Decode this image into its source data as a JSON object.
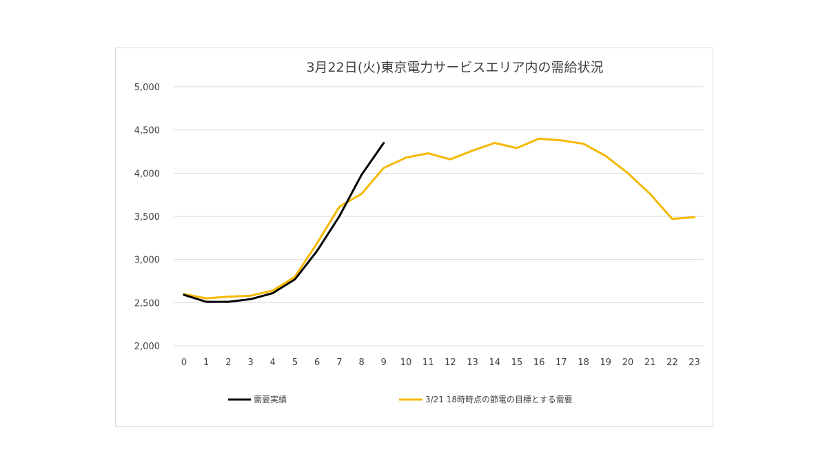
{
  "chart_data": {
    "type": "line",
    "title": "3月22日(火)東京電力サービスエリア内の需給状況",
    "xlabel": "",
    "ylabel": "",
    "x": [
      0,
      1,
      2,
      3,
      4,
      5,
      6,
      7,
      8,
      9,
      10,
      11,
      12,
      13,
      14,
      15,
      16,
      17,
      18,
      19,
      20,
      21,
      22,
      23
    ],
    "x_tick_labels": [
      "0",
      "1",
      "2",
      "3",
      "4",
      "5",
      "6",
      "7",
      "8",
      "9",
      "10",
      "11",
      "12",
      "13",
      "14",
      "15",
      "16",
      "17",
      "18",
      "19",
      "20",
      "21",
      "22",
      "23"
    ],
    "ylim": [
      2000,
      5000
    ],
    "y_ticks": [
      2000,
      2500,
      3000,
      3500,
      4000,
      4500,
      5000
    ],
    "y_tick_labels": [
      "2,000",
      "2,500",
      "3,000",
      "3,500",
      "4,000",
      "4,500",
      "5,000"
    ],
    "grid": true,
    "legend_position": "bottom",
    "series": [
      {
        "name": "需要実績",
        "color": "#000000",
        "values": [
          2590,
          2510,
          2510,
          2540,
          2610,
          2770,
          3100,
          3500,
          3980,
          4350,
          null,
          null,
          null,
          null,
          null,
          null,
          null,
          null,
          null,
          null,
          null,
          null,
          null,
          null
        ]
      },
      {
        "name": "3/21 18時時点の節電の目標とする需要",
        "color": "#f5b800",
        "values": [
          2600,
          2550,
          2570,
          2580,
          2640,
          2800,
          3190,
          3610,
          3760,
          4060,
          4180,
          4230,
          4160,
          4260,
          4350,
          4290,
          4400,
          4380,
          4340,
          4200,
          4000,
          3760,
          3470,
          3490
        ]
      }
    ]
  }
}
